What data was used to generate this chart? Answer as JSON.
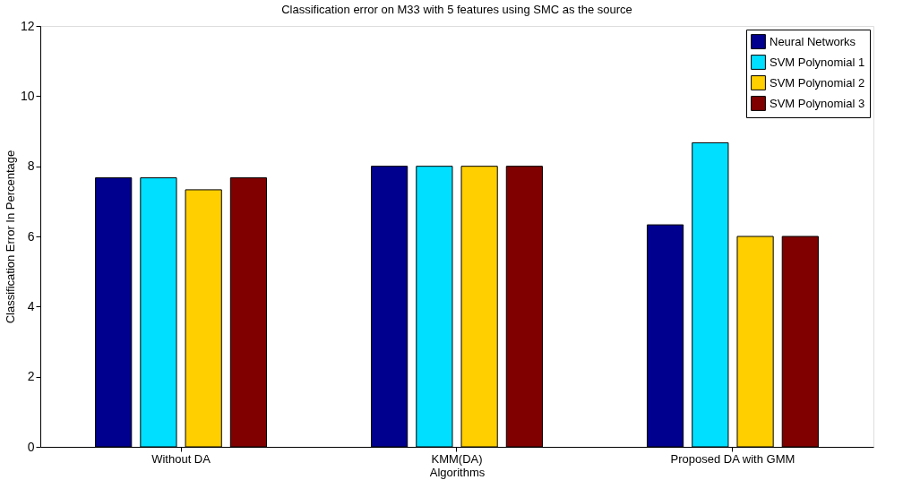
{
  "chart_data": {
    "type": "bar",
    "title": "Classification error on M33 with 5 features using SMC as the source",
    "xlabel": "Algorithms",
    "ylabel": "Classification Error In Percentage",
    "categories": [
      "Without DA",
      "KMM(DA)",
      "Proposed DA with GMM"
    ],
    "series": [
      {
        "name": "Neural Networks",
        "color": "#00008f",
        "values": [
          7.67,
          8,
          6.33
        ]
      },
      {
        "name": "SVM Polynomial 1",
        "color": "#00dfff",
        "values": [
          7.67,
          8,
          8.67
        ]
      },
      {
        "name": "SVM Polynomial 2",
        "color": "#ffcf00",
        "values": [
          7.33,
          8,
          6
        ]
      },
      {
        "name": "SVM Polynomial 3",
        "color": "#800000",
        "values": [
          7.67,
          8,
          6
        ]
      }
    ],
    "ylim": [
      0,
      12
    ],
    "yticks": [
      0,
      2,
      4,
      6,
      8,
      10,
      12
    ],
    "grid": false,
    "legend": "top right"
  }
}
